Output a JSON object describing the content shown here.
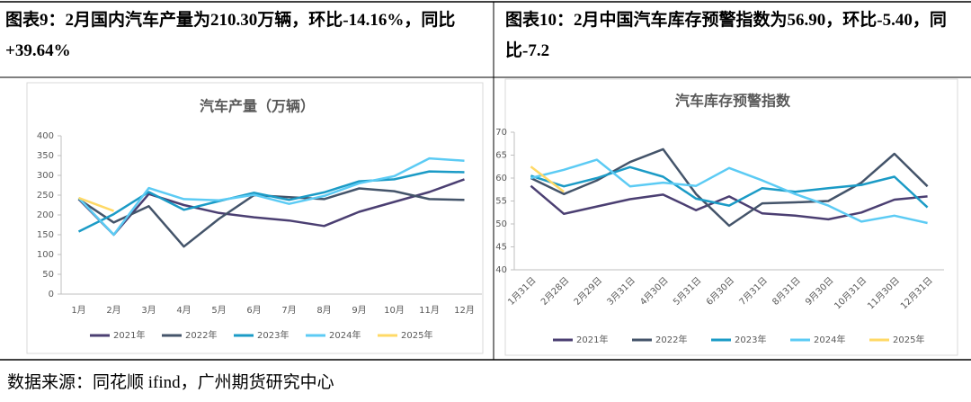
{
  "captions": [
    "图表9：2月国内汽车产量为210.30万辆，环比-14.16%，同比+39.64%",
    "图表10：2月中国汽车库存预警指数为56.90，环比-5.40，同比-7.2"
  ],
  "source": "数据来源：同花顺 ifind，广州期货研究中心",
  "chart_data": [
    {
      "type": "line",
      "title": "汽车产量（万辆）",
      "categories": [
        "1月",
        "2月",
        "3月",
        "4月",
        "5月",
        "6月",
        "7月",
        "8月",
        "9月",
        "10月",
        "11月",
        "12月"
      ],
      "ylim": [
        0,
        400
      ],
      "yticks": [
        0,
        50,
        100,
        150,
        200,
        250,
        300,
        350,
        400
      ],
      "series": [
        {
          "name": "2021年",
          "color": "#4b3f72",
          "values": [
            240,
            150,
            253,
            225,
            205,
            194,
            186,
            172,
            208,
            233,
            258,
            290
          ]
        },
        {
          "name": "2022年",
          "color": "#44546a",
          "values": [
            240,
            181,
            222,
            120,
            190,
            250,
            245,
            240,
            267,
            260,
            240,
            238
          ]
        },
        {
          "name": "2023年",
          "color": "#1b9bc6",
          "values": [
            158,
            202,
            258,
            213,
            235,
            256,
            238,
            257,
            285,
            290,
            310,
            308
          ]
        },
        {
          "name": "2024年",
          "color": "#5ccbf4",
          "values": [
            243,
            150,
            268,
            240,
            237,
            251,
            228,
            248,
            280,
            298,
            343,
            337
          ]
        },
        {
          "name": "2025年",
          "color": "#ffd966",
          "values": [
            243,
            210,
            null,
            null,
            null,
            null,
            null,
            null,
            null,
            null,
            null,
            null
          ]
        }
      ]
    },
    {
      "type": "line",
      "title": "汽车库存预警指数",
      "categories": [
        "1月31日",
        "2月28日",
        "2月29日",
        "3月31日",
        "4月30日",
        "5月31日",
        "6月30日",
        "7月31日",
        "8月31日",
        "9月30日",
        "10月31日",
        "11月30日",
        "12月31日"
      ],
      "ylim": [
        40,
        70
      ],
      "yticks": [
        40,
        45,
        50,
        55,
        60,
        65,
        70
      ],
      "series": [
        {
          "name": "2021年",
          "color": "#4b3f72",
          "values": [
            58.3,
            52.2,
            53.8,
            55.4,
            56.4,
            53,
            56,
            52.3,
            51.8,
            51,
            52.5,
            55.3,
            56
          ]
        },
        {
          "name": "2022年",
          "color": "#44546a",
          "values": [
            60,
            56.5,
            59.5,
            63.5,
            66.3,
            56.5,
            49.6,
            54.5,
            54.7,
            55,
            59,
            65.3,
            58.2
          ]
        },
        {
          "name": "2023年",
          "color": "#1b9bc6",
          "values": [
            60.5,
            58.2,
            60,
            62.4,
            60.3,
            55.5,
            54,
            57.8,
            57,
            57.8,
            58.5,
            60.3,
            53.6
          ]
        },
        {
          "name": "2024年",
          "color": "#5ccbf4",
          "values": [
            60,
            61.8,
            64,
            58.2,
            59,
            58.3,
            62.2,
            59.5,
            56.5,
            54,
            50.5,
            51.8,
            50.2
          ]
        },
        {
          "name": "2025年",
          "color": "#ffd966",
          "values": [
            62.5,
            57,
            null,
            null,
            null,
            null,
            null,
            null,
            null,
            null,
            null,
            null,
            null
          ]
        }
      ]
    }
  ]
}
